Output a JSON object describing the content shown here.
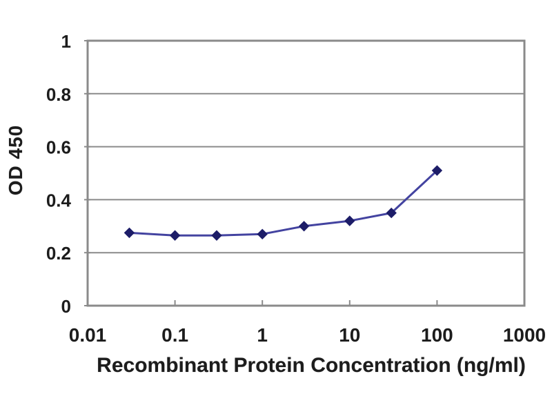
{
  "chart_data": {
    "type": "line",
    "title": "",
    "xlabel": "Recombinant Protein Concentration (ng/ml)",
    "ylabel": "OD 450",
    "x_scale": "log",
    "xlim": [
      0.01,
      1000
    ],
    "ylim": [
      0,
      1
    ],
    "grid": "horizontal-gridlines-only",
    "legend": "none",
    "x_ticks": [
      {
        "value": 0.01,
        "label": "0.01"
      },
      {
        "value": 0.1,
        "label": "0.1"
      },
      {
        "value": 1,
        "label": "1"
      },
      {
        "value": 10,
        "label": "10"
      },
      {
        "value": 100,
        "label": "100"
      },
      {
        "value": 1000,
        "label": "1000"
      }
    ],
    "y_ticks": [
      {
        "value": 0,
        "label": "0"
      },
      {
        "value": 0.2,
        "label": "0.2"
      },
      {
        "value": 0.4,
        "label": "0.4"
      },
      {
        "value": 0.6,
        "label": "0.6"
      },
      {
        "value": 0.8,
        "label": "0.8"
      },
      {
        "value": 1,
        "label": "1"
      }
    ],
    "series": [
      {
        "name": "OD 450",
        "marker": "diamond",
        "points": [
          {
            "x": 0.03,
            "y": 0.275
          },
          {
            "x": 0.1,
            "y": 0.265
          },
          {
            "x": 0.3,
            "y": 0.265
          },
          {
            "x": 1,
            "y": 0.27
          },
          {
            "x": 3,
            "y": 0.3
          },
          {
            "x": 10,
            "y": 0.32
          },
          {
            "x": 30,
            "y": 0.35
          },
          {
            "x": 100,
            "y": 0.51
          }
        ]
      }
    ],
    "colors": {
      "line": "#4343a0",
      "marker": "#1d1d68",
      "grid": "#8a8a8a",
      "frame": "#8a8a8a",
      "text": "#1c1c1c",
      "background": "#ffffff"
    }
  }
}
